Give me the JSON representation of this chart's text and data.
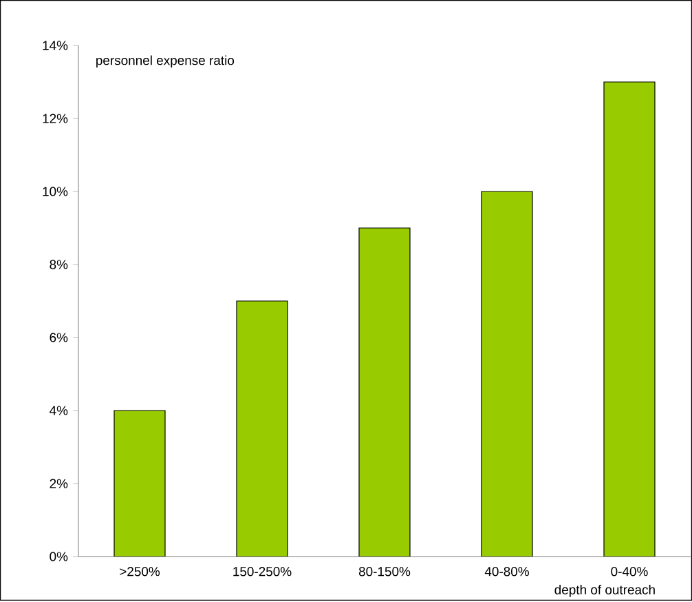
{
  "chart_data": {
    "type": "bar",
    "ylabel": "personnel expense ratio",
    "xlabel": "depth of outreach",
    "categories": [
      ">250%",
      "150-250%",
      "80-150%",
      "40-80%",
      "0-40%"
    ],
    "values": [
      4,
      7,
      9,
      10,
      13
    ],
    "color": "#99cc00",
    "ylim": [
      0,
      14
    ],
    "yticks": [
      {
        "value": 0,
        "label": "0%"
      },
      {
        "value": 2,
        "label": "2%"
      },
      {
        "value": 4,
        "label": "4%"
      },
      {
        "value": 6,
        "label": "6%"
      },
      {
        "value": 8,
        "label": "8%"
      },
      {
        "value": 10,
        "label": "10%"
      },
      {
        "value": 12,
        "label": "12%"
      },
      {
        "value": 14,
        "label": "14%"
      }
    ],
    "grid": false
  }
}
